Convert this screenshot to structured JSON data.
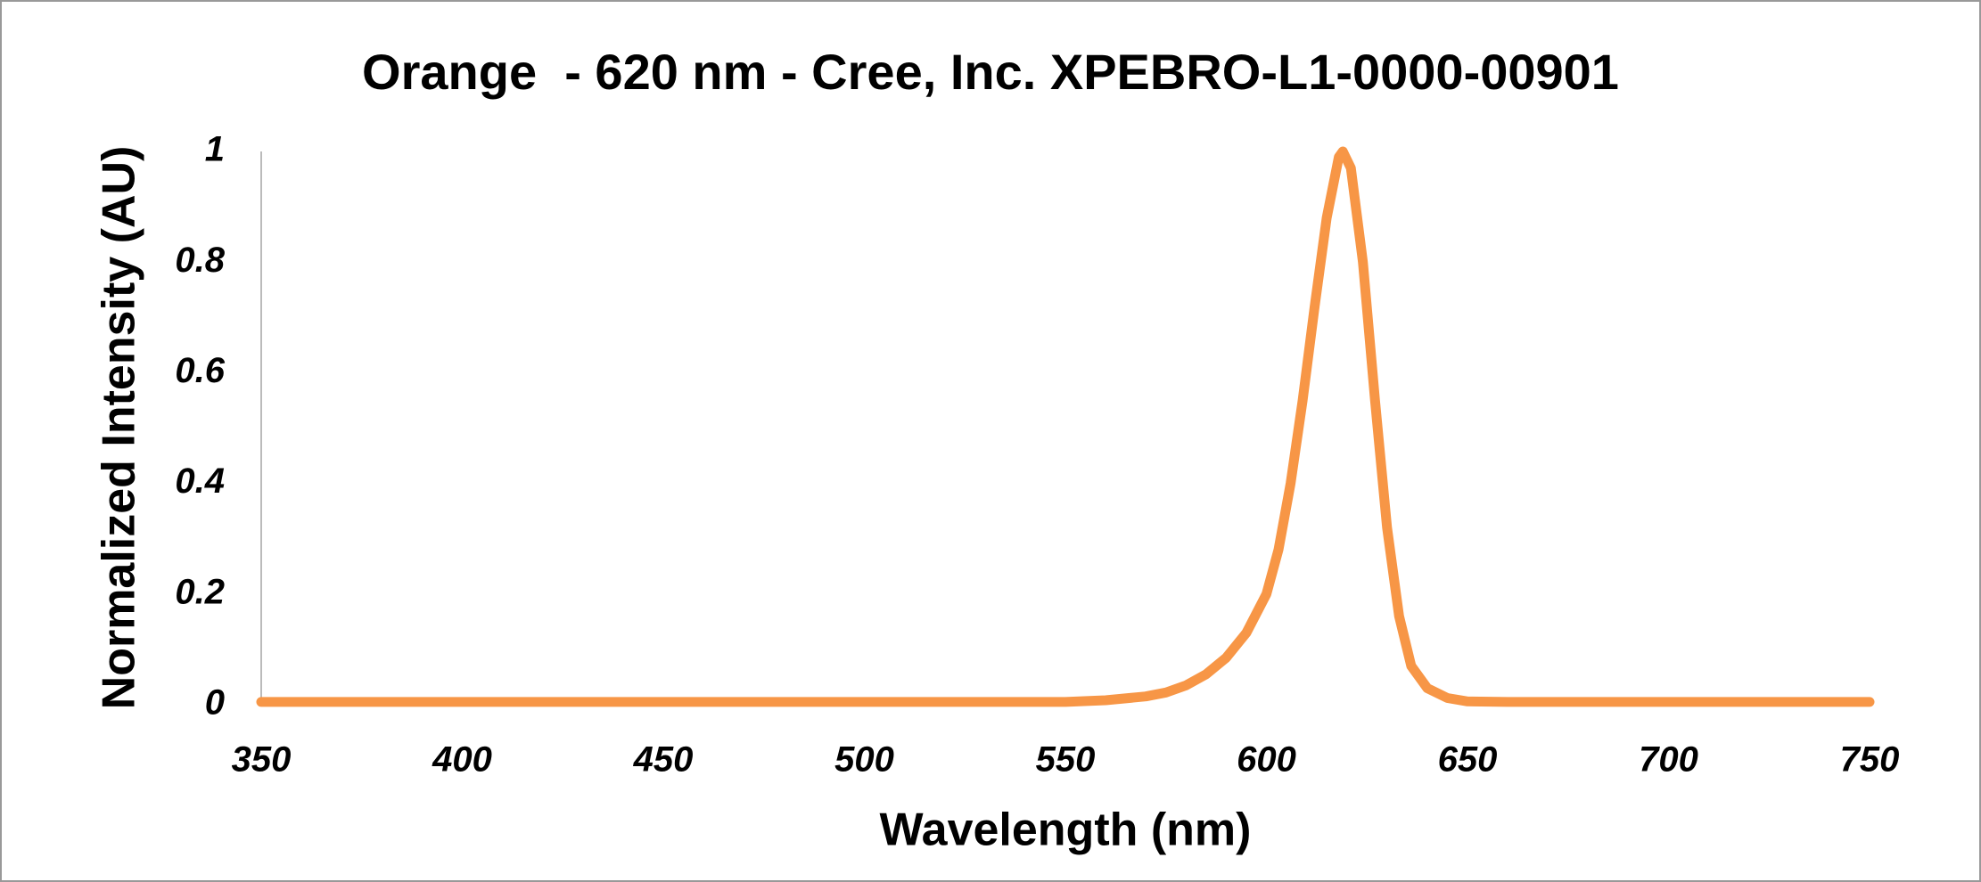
{
  "chart_data": {
    "type": "line",
    "title": "Orange  - 620 nm - Cree, Inc. XPEBRO-L1-0000-00901",
    "x_label": "Wavelength (nm)",
    "y_label": "Normalized Intensity (AU)",
    "x": [
      350,
      400,
      450,
      500,
      550,
      560,
      570,
      575,
      580,
      585,
      590,
      595,
      600,
      603,
      606,
      609,
      612,
      615,
      618,
      619,
      621,
      624,
      627,
      630,
      633,
      636,
      640,
      645,
      650,
      660,
      700,
      750
    ],
    "series": [
      {
        "name": "Orange",
        "color": "#f79646",
        "values": [
          0.005,
          0.005,
          0.005,
          0.005,
          0.005,
          0.008,
          0.015,
          0.022,
          0.035,
          0.055,
          0.085,
          0.13,
          0.2,
          0.28,
          0.4,
          0.55,
          0.72,
          0.88,
          0.99,
          1,
          0.97,
          0.8,
          0.55,
          0.32,
          0.16,
          0.07,
          0.03,
          0.012,
          0.006,
          0.005,
          0.005,
          0.005
        ]
      }
    ],
    "xlim": [
      350,
      750
    ],
    "xticks": [
      350,
      400,
      450,
      500,
      550,
      600,
      650,
      700,
      750
    ],
    "ylim": [
      0,
      1
    ],
    "yticks": [
      0,
      0.2,
      0.4,
      0.6,
      0.8,
      1
    ],
    "grid": false
  }
}
